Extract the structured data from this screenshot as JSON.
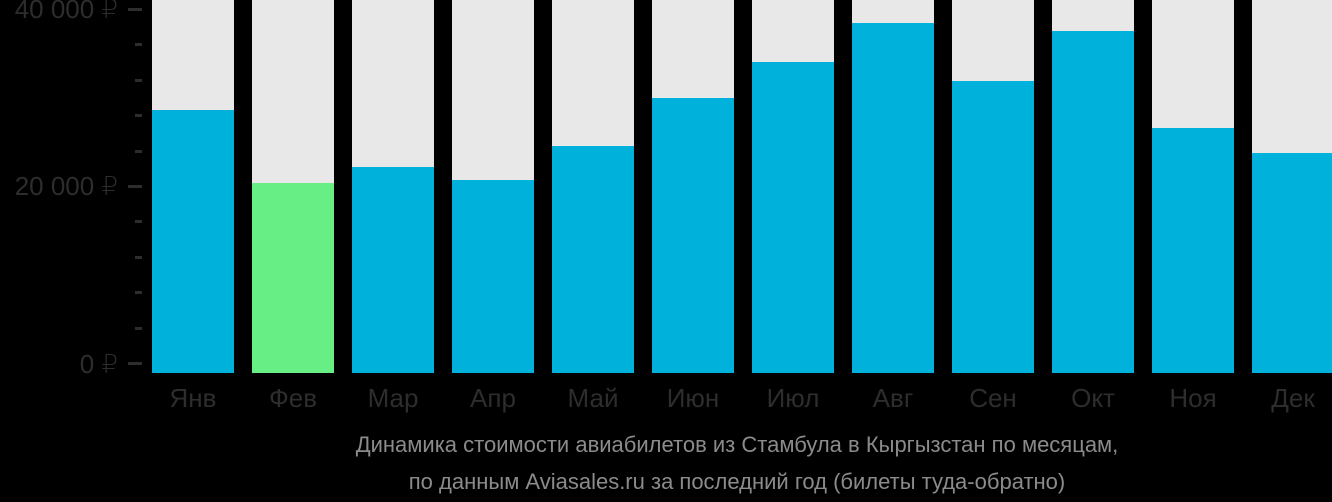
{
  "background": "#000000",
  "colors": {
    "bar_default": "#00b1dc",
    "bar_highlight": "#67ee85",
    "bar_track": "#e8e8e8",
    "axis_text": "#2d2d2d",
    "tick_mark": "#2d2d2d",
    "title_text": "#8b8b8b"
  },
  "y_axis": {
    "max": 40000,
    "minor_tick_step": 4000,
    "major_ticks": [
      {
        "value": 0,
        "label": "0 ₽"
      },
      {
        "value": 20000,
        "label": "20 000 ₽"
      },
      {
        "value": 40000,
        "label": "40 000 ₽"
      }
    ]
  },
  "title": {
    "line1": "Динамика стоимости авиабилетов из Стамбула в Кыргызстан по месяцам,",
    "line2": "по данным Aviasales.ru за последний год (билеты туда-обратно)"
  },
  "chart_data": {
    "type": "bar",
    "title": "Динамика стоимости авиабилетов из Стамбула в Кыргызстан по месяцам, по данным Aviasales.ru за последний год (билеты туда-обратно)",
    "categories": [
      "Янв",
      "Фев",
      "Мар",
      "Апр",
      "Май",
      "Июн",
      "Июл",
      "Авг",
      "Сен",
      "Окт",
      "Ноя",
      "Дек"
    ],
    "values": [
      28600,
      20400,
      22200,
      20700,
      24600,
      30000,
      34100,
      38500,
      31900,
      37600,
      26600,
      23800
    ],
    "unit": "₽",
    "highlight_index": 1,
    "highlight_meaning": "cheapest-month",
    "xlabel": "",
    "ylabel": "",
    "ylim": [
      0,
      40000
    ],
    "grid": false,
    "legend": false
  }
}
